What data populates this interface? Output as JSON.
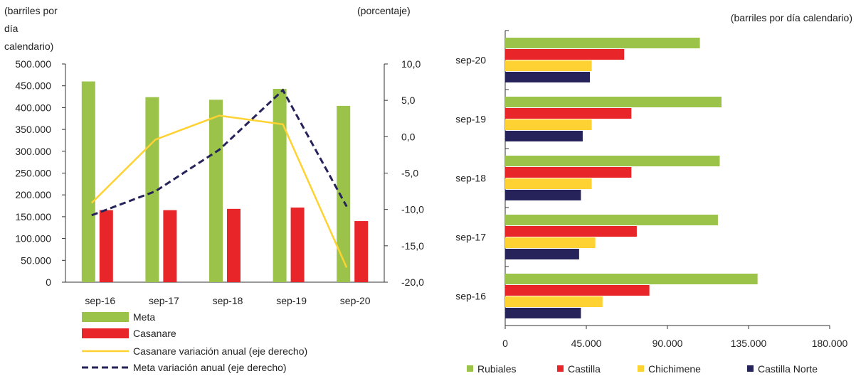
{
  "chart_data": [
    {
      "type": "bar+line",
      "title": "",
      "ylabel_left_lines": [
        "(barriles por",
        "día",
        "calendario)"
      ],
      "ylabel_right": "(porcentaje)",
      "categories": [
        "sep-16",
        "sep-17",
        "sep-18",
        "sep-19",
        "sep-20"
      ],
      "ylim_left": [
        0,
        500000
      ],
      "ylim_right": [
        -20,
        10
      ],
      "left_ticks": [
        "0",
        "50.000",
        "100.000",
        "150.000",
        "200.000",
        "250.000",
        "300.000",
        "350.000",
        "400.000",
        "450.000",
        "500.000"
      ],
      "right_ticks": [
        "-20,0",
        "-15,0",
        "-10,0",
        "-5,0",
        "0,0",
        "5,0",
        "10,0"
      ],
      "series": [
        {
          "name": "Meta",
          "kind": "bar",
          "axis": "left",
          "color": "#9bc34a",
          "values": [
            460000,
            424000,
            418000,
            443000,
            404000
          ]
        },
        {
          "name": "Casanare",
          "kind": "bar",
          "axis": "left",
          "color": "#e8262a",
          "values": [
            165000,
            165000,
            168000,
            171000,
            140000
          ]
        },
        {
          "name": "Casanare variación anual (eje derecho)",
          "kind": "line",
          "axis": "right",
          "color": "#ffd233",
          "dash": false,
          "values": [
            -9.1,
            -0.4,
            2.9,
            1.7,
            -18.0
          ]
        },
        {
          "name": "Meta variación anual (eje derecho)",
          "kind": "line",
          "axis": "right",
          "color": "#26235b",
          "dash": true,
          "values": [
            -10.8,
            -7.5,
            -1.8,
            6.4,
            -9.6
          ]
        }
      ],
      "legend_position": "bottom"
    },
    {
      "type": "bar",
      "orientation": "horizontal",
      "title": "",
      "xlabel": "(barriles por día calendario)",
      "categories": [
        "sep-20",
        "sep-19",
        "sep-18",
        "sep-17",
        "sep-16"
      ],
      "xlim": [
        0,
        180000
      ],
      "x_ticks": [
        "0",
        "45.000",
        "90.000",
        "135.000",
        "180.000"
      ],
      "series": [
        {
          "name": "Rubiales",
          "color": "#9bc34a",
          "values": [
            108000,
            120000,
            119000,
            118000,
            140000
          ]
        },
        {
          "name": "Castilla",
          "color": "#e8262a",
          "values": [
            66000,
            70000,
            70000,
            73000,
            80000
          ]
        },
        {
          "name": "Chichimene",
          "color": "#ffd233",
          "values": [
            48000,
            48000,
            48000,
            50000,
            54000
          ]
        },
        {
          "name": "Castilla Norte",
          "color": "#26235b",
          "values": [
            47000,
            43000,
            42000,
            41000,
            42000
          ]
        }
      ],
      "legend_position": "bottom"
    }
  ]
}
